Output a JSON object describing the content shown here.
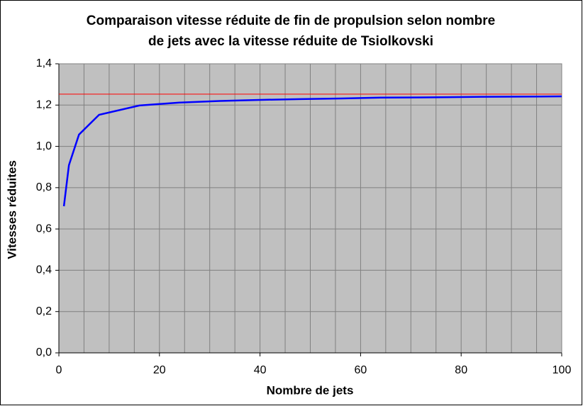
{
  "chart_data": {
    "type": "line",
    "title": [
      "Comparaison vitesse réduite de fin de propulsion selon nombre",
      "de jets avec la vitesse réduite de Tsiolkovski"
    ],
    "x_label": "Nombre de jets",
    "y_label": "Vitesses réduites",
    "x": [
      1,
      2,
      4,
      8,
      16,
      24,
      32,
      40,
      48,
      56,
      64,
      72,
      84,
      100
    ],
    "series": [
      {
        "color": "#0000ff",
        "values": [
          0.71,
          0.909,
          1.057,
          1.153,
          1.198,
          1.212,
          1.22,
          1.225,
          1.229,
          1.232,
          1.236,
          1.237,
          1.24,
          1.242
        ]
      }
    ],
    "reference_line": {
      "value": 1.253,
      "color": "#ff0000"
    },
    "xlim": [
      0,
      100
    ],
    "xticks": [
      0,
      20,
      40,
      60,
      80,
      100
    ],
    "x_minor_grid": [
      5,
      10,
      15,
      25,
      30,
      35,
      45,
      50,
      55,
      65,
      70,
      75,
      85,
      90,
      95
    ],
    "ylim": [
      0,
      1.4
    ],
    "yticks": [
      {
        "value": 0,
        "label": "0,0"
      },
      {
        "value": 0.2,
        "label": "0,2"
      },
      {
        "value": 0.4,
        "label": "0,4"
      },
      {
        "value": 0.6,
        "label": "0,6"
      },
      {
        "value": 0.8,
        "label": "0,8"
      },
      {
        "value": 1.0,
        "label": "1,0"
      },
      {
        "value": 1.2,
        "label": "1,2"
      },
      {
        "value": 1.4,
        "label": "1,4"
      }
    ],
    "grid": true,
    "plot_background": "#c0c0c0"
  }
}
